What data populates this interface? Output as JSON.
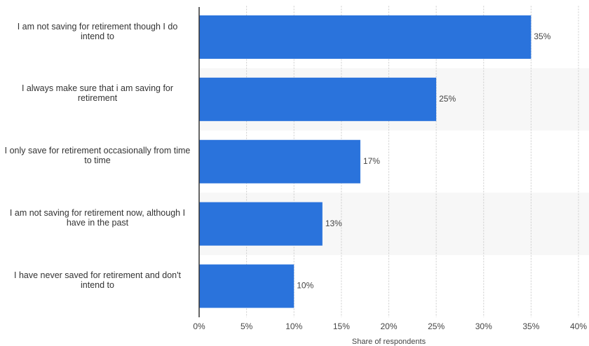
{
  "chart_data": {
    "type": "hbar",
    "categories": [
      "I am not saving for retirement though I do intend to",
      "I always make sure that i am saving for retirement",
      "I only save for retirement occasionally from time to time",
      "I am not saving for retirement now, although I have in the past",
      "I have never saved for retirement and don't intend to"
    ],
    "values": [
      35,
      25,
      17,
      13,
      10
    ],
    "value_labels": [
      "35%",
      "25%",
      "17%",
      "13%",
      "10%"
    ],
    "color": "#2a73dc",
    "xlim": [
      0,
      40
    ],
    "xticks": [
      {
        "value": 0,
        "label": "0%"
      },
      {
        "value": 5,
        "label": "5%"
      },
      {
        "value": 10,
        "label": "10%"
      },
      {
        "value": 15,
        "label": "15%"
      },
      {
        "value": 20,
        "label": "20%"
      },
      {
        "value": 25,
        "label": "25%"
      },
      {
        "value": 30,
        "label": "30%"
      },
      {
        "value": 35,
        "label": "35%"
      },
      {
        "value": 40,
        "label": "40%"
      }
    ],
    "xlabel": "Share of respondents",
    "grid": true
  }
}
